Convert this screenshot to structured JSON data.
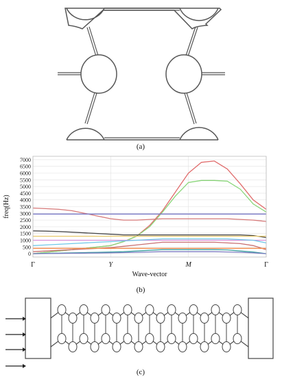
{
  "captions": {
    "a": "(a)",
    "b": "(b)",
    "c": "(c)"
  },
  "chart_data": {
    "type": "line",
    "title": "",
    "xlabel": "Wave-vector",
    "ylabel": "freq(Hz)",
    "x_ticks": [
      "Γ",
      "Y",
      "M",
      "Γ"
    ],
    "x": [
      0,
      0.5,
      1,
      1.5,
      2,
      2.5,
      3,
      3.5,
      4,
      4.5,
      5,
      5.5,
      6,
      6.5,
      7,
      7.5,
      8,
      8.5,
      9
    ],
    "y_ticks": [
      0,
      500,
      1000,
      1500,
      2000,
      2500,
      3000,
      3500,
      4000,
      4500,
      5000,
      5500,
      6000,
      6500,
      7000
    ],
    "ylim": [
      -250,
      7250
    ],
    "xlim": [
      0,
      9
    ],
    "grid": true,
    "series": [
      {
        "color": "#e06c6c",
        "values": [
          0,
          100,
          200,
          300,
          400,
          500,
          600,
          900,
          1300,
          2100,
          3200,
          4600,
          6000,
          6800,
          6900,
          6300,
          5200,
          4000,
          3300
        ]
      },
      {
        "color": "#8ad67a",
        "values": [
          0,
          100,
          200,
          300,
          400,
          500,
          600,
          900,
          1300,
          2000,
          3100,
          4300,
          5300,
          5450,
          5450,
          5400,
          4800,
          3700,
          3100
        ]
      },
      {
        "color": "#d67878",
        "values": [
          3400,
          3350,
          3300,
          3200,
          3000,
          2800,
          2600,
          2500,
          2500,
          2550,
          2600,
          2600,
          2600,
          2600,
          2600,
          2600,
          2550,
          2500,
          2400
        ]
      },
      {
        "color": "#7b7bc8",
        "values": [
          2950,
          2950,
          2950,
          2950,
          2950,
          2950,
          2950,
          2950,
          2950,
          2950,
          2950,
          2950,
          2950,
          2950,
          2950,
          2950,
          2950,
          2950,
          2950
        ]
      },
      {
        "color": "#4a4a4a",
        "values": [
          1700,
          1680,
          1650,
          1600,
          1550,
          1500,
          1450,
          1400,
          1400,
          1400,
          1400,
          1400,
          1400,
          1400,
          1400,
          1400,
          1400,
          1350,
          1200
        ]
      },
      {
        "color": "#e8c86a",
        "values": [
          1300,
          1300,
          1300,
          1300,
          1300,
          1300,
          1300,
          1300,
          1300,
          1300,
          1300,
          1300,
          1300,
          1300,
          1300,
          1300,
          1300,
          1300,
          1300
        ]
      },
      {
        "color": "#d890d8",
        "values": [
          1000,
          1000,
          1000,
          1000,
          1000,
          1000,
          1000,
          1000,
          1000,
          1000,
          1000,
          1000,
          1000,
          1000,
          1000,
          1000,
          1000,
          1000,
          1000
        ]
      },
      {
        "color": "#6ec8e8",
        "values": [
          600,
          650,
          700,
          750,
          800,
          850,
          900,
          950,
          1000,
          1050,
          1100,
          1100,
          1100,
          1100,
          1100,
          1100,
          1050,
          1000,
          800
        ]
      },
      {
        "color": "#c87070",
        "values": [
          150,
          200,
          250,
          300,
          350,
          400,
          450,
          550,
          650,
          750,
          850,
          850,
          850,
          850,
          850,
          800,
          750,
          600,
          300
        ]
      },
      {
        "color": "#f08a4a",
        "values": [
          400,
          400,
          400,
          400,
          400,
          400,
          400,
          400,
          400,
          400,
          400,
          400,
          400,
          400,
          400,
          400,
          400,
          400,
          400
        ]
      },
      {
        "color": "#3aa0a0",
        "values": [
          0,
          20,
          40,
          60,
          80,
          100,
          120,
          150,
          200,
          250,
          300,
          300,
          300,
          300,
          300,
          280,
          200,
          120,
          0
        ]
      },
      {
        "color": "#7a7ac0",
        "values": [
          0,
          10,
          20,
          30,
          40,
          50,
          60,
          80,
          100,
          130,
          150,
          150,
          150,
          150,
          150,
          130,
          100,
          60,
          0
        ]
      }
    ]
  }
}
